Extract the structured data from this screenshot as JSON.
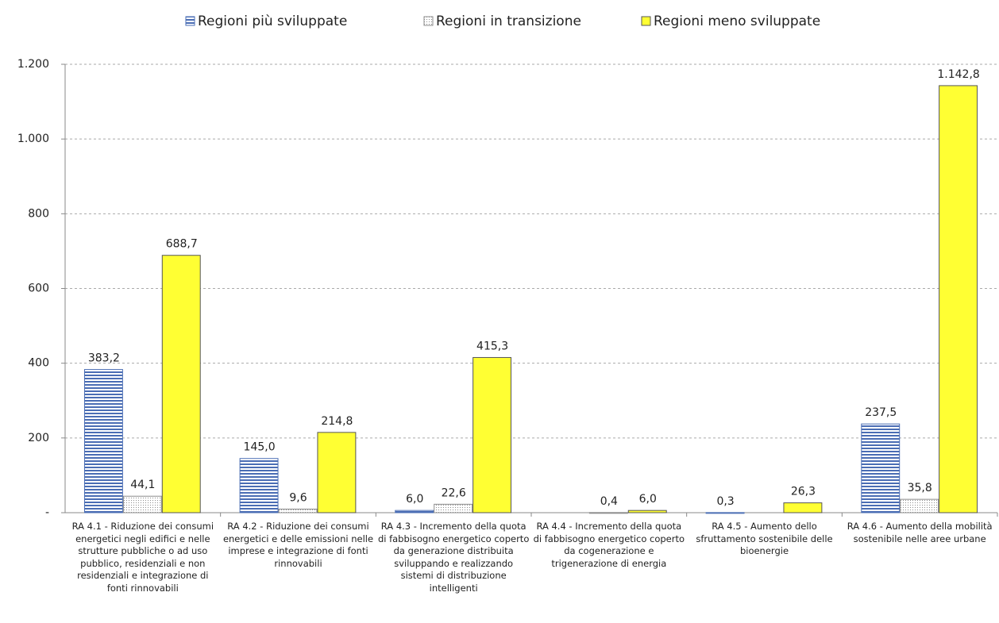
{
  "chart_data": {
    "type": "bar",
    "categories": [
      "RA 4.1 - Riduzione dei consumi energetici negli edifici e nelle strutture pubbliche o ad uso pubblico, residenziali e non residenziali e integrazione di fonti rinnovabili",
      "RA 4.2 - Riduzione dei consumi energetici e delle emissioni nelle imprese e integrazione di fonti rinnovabili",
      "RA 4.3 - Incremento della quota di fabbisogno energetico coperto da generazione distribuita sviluppando e realizzando sistemi di distribuzione intelligenti",
      "RA 4.4 - Incremento della quota di fabbisogno energetico coperto da cogenerazione e trigenerazione di energia",
      "RA 4.5 - Aumento dello sfruttamento sostenibile delle bioenergie",
      "RA 4.6 - Aumento della mobilità sostenibile nelle aree urbane"
    ],
    "series": [
      {
        "name": "Regioni più sviluppate",
        "color": "#4a6db4",
        "fill_style": "horizontal-lines",
        "values": [
          383.2,
          145.0,
          6.0,
          null,
          0.3,
          237.5
        ],
        "value_labels": [
          "383,2",
          "145,0",
          "6,0",
          null,
          "0,3",
          "237,5"
        ]
      },
      {
        "name": "Regioni in transizione",
        "color": "#8c8c8c",
        "fill_style": "dots",
        "values": [
          44.1,
          9.6,
          22.6,
          0.4,
          null,
          35.8
        ],
        "value_labels": [
          "44,1",
          "9,6",
          "22,6",
          "0,4",
          null,
          "35,8"
        ]
      },
      {
        "name": "Regioni meno sviluppate",
        "color": "#ffff33",
        "fill_style": "solid",
        "values": [
          688.7,
          214.8,
          415.3,
          6.0,
          26.3,
          1142.8
        ],
        "value_labels": [
          "688,7",
          "214,8",
          "415,3",
          "6,0",
          "26,3",
          "1.142,8"
        ]
      }
    ],
    "ylim": [
      0,
      1200
    ],
    "yticks": [
      {
        "value": 0,
        "label": "-"
      },
      200,
      400,
      600,
      800,
      {
        "value": 1000,
        "label": "1.000"
      },
      {
        "value": 1200,
        "label": "1.200"
      }
    ],
    "grid": true,
    "legend": "top"
  }
}
